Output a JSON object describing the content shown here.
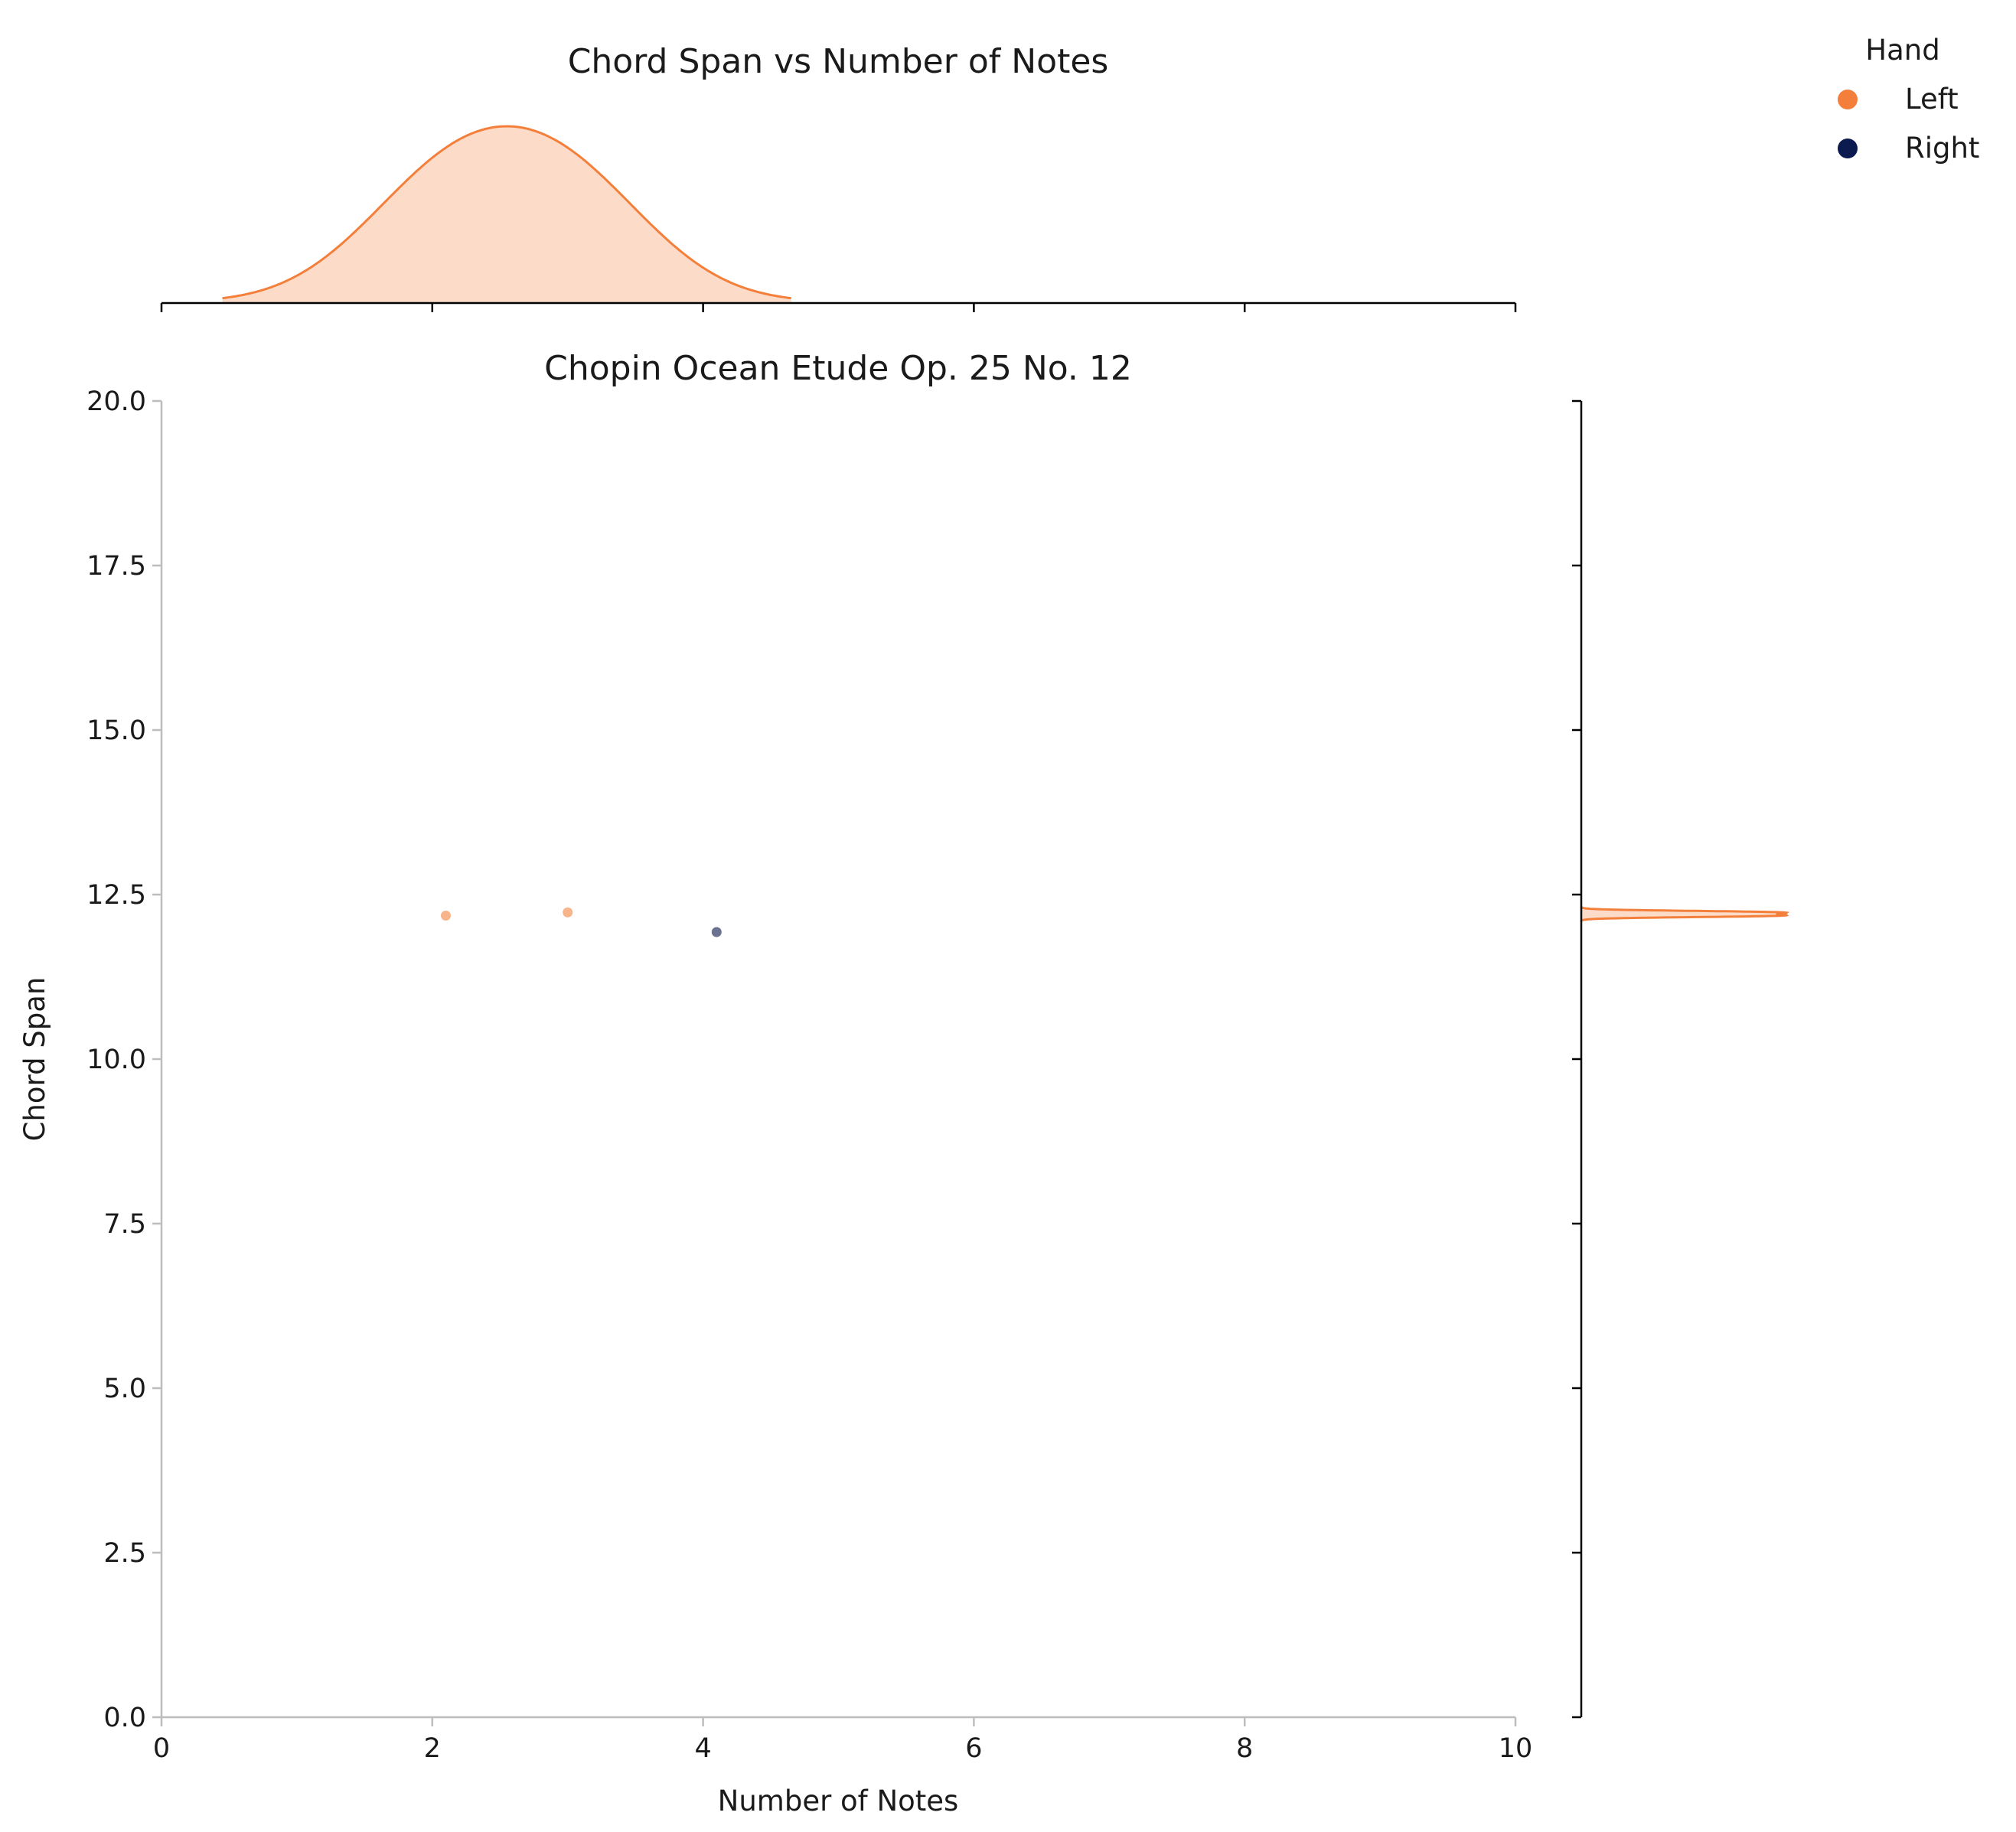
{
  "chart_data": {
    "type": "scatter",
    "suptitle": "Chord Span vs  Number of Notes",
    "title": "Chopin Ocean Etude Op. 25 No. 12",
    "xlabel": "Number of Notes",
    "ylabel": "Chord Span",
    "xlim": [
      0,
      10
    ],
    "ylim": [
      0,
      20
    ],
    "xticks": [
      "0",
      "2",
      "4",
      "6",
      "8",
      "10"
    ],
    "yticks": [
      "0.0",
      "2.5",
      "5.0",
      "7.5",
      "10.0",
      "12.5",
      "15.0",
      "17.5",
      "20.0"
    ],
    "legend": {
      "title": "Hand",
      "placement": "top-right outside"
    },
    "series": [
      {
        "name": "Left",
        "color": "#f47f3b",
        "points": [
          {
            "x": 2.1,
            "y": 12.18
          },
          {
            "x": 3.0,
            "y": 12.23
          }
        ]
      },
      {
        "name": "Right",
        "color": "#0b1a4f",
        "points": [
          {
            "x": 4.1,
            "y": 11.93
          }
        ]
      }
    ],
    "marginals": {
      "top": {
        "type": "kde",
        "series": "Left"
      },
      "right": {
        "type": "kde",
        "series": "Left"
      }
    }
  }
}
